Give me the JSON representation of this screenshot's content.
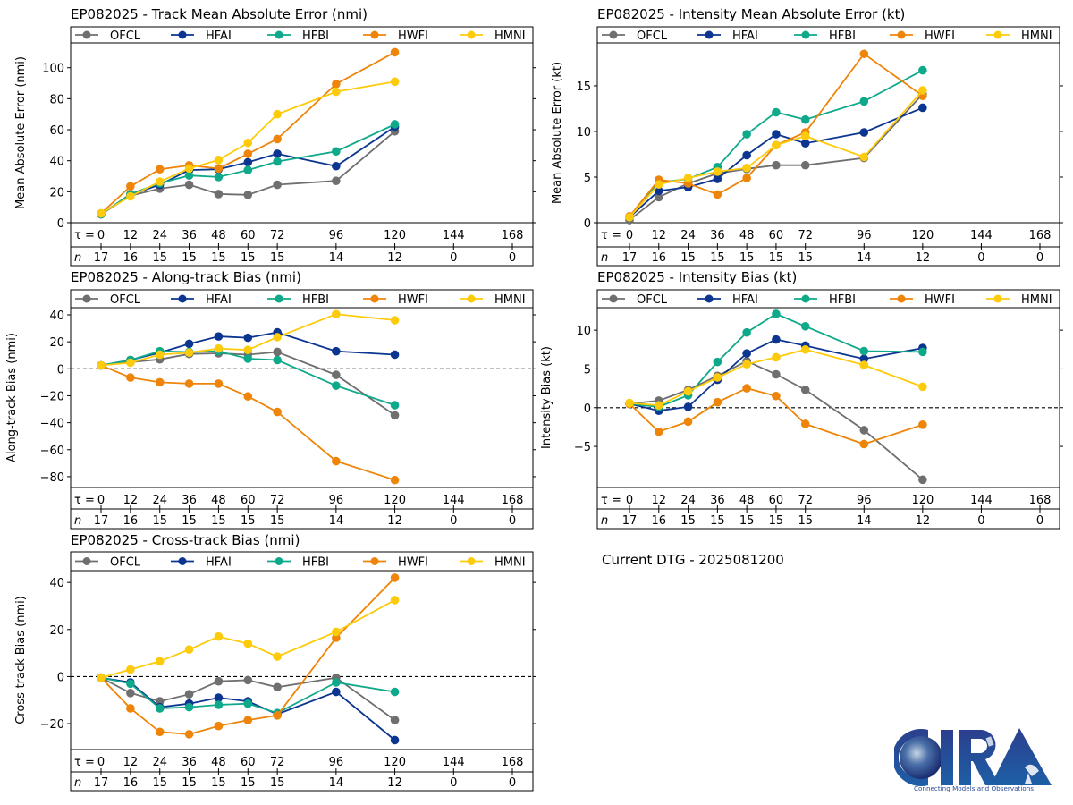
{
  "colors": {
    "OFCL": "#6f6f6f",
    "HFAI": "#0b3591",
    "HFBI": "#0ea98a",
    "HWFI": "#ee8408",
    "HMNI": "#fdcb0b"
  },
  "tau_label": "τ = ",
  "n_label": "n",
  "current_dtg": "Current DTG - 2025081200",
  "logo": {
    "text": "CIRA",
    "tagline": "Connecting Models and Observations"
  },
  "chart_data": [
    {
      "id": "track-mae",
      "type": "line",
      "title": "EP082025 - Track Mean Absolute Error (nmi)",
      "ylabel": "Mean Absolute Error (nmi)",
      "xlabel": "τ (h)",
      "ylim": [
        0,
        116
      ],
      "yticks": [
        0,
        20,
        40,
        60,
        80,
        100
      ],
      "zero_line": false,
      "legend": "top",
      "tau_ticks": [
        0,
        12,
        24,
        36,
        48,
        60,
        72,
        96,
        120,
        144,
        168
      ],
      "n_counts": [
        17,
        16,
        15,
        15,
        15,
        15,
        15,
        14,
        12,
        0,
        0
      ],
      "x": [
        0,
        12,
        24,
        36,
        48,
        60,
        72,
        96,
        120
      ],
      "series": [
        {
          "name": "OFCL",
          "values": [
            5.5,
            17.5,
            22,
            24.5,
            18.5,
            18,
            24.5,
            27,
            59
          ]
        },
        {
          "name": "HFAI",
          "values": [
            5.5,
            18,
            24.5,
            34,
            34.5,
            39,
            44.5,
            36.5,
            62
          ]
        },
        {
          "name": "HFBI",
          "values": [
            5.5,
            18.5,
            25.5,
            30.5,
            29.5,
            34,
            39.5,
            46,
            63.5
          ]
        },
        {
          "name": "HWFI",
          "values": [
            6,
            23.5,
            34.5,
            37,
            35,
            44.5,
            54,
            89.5,
            110
          ]
        },
        {
          "name": "HMNI",
          "values": [
            6,
            17,
            26.5,
            35,
            40.5,
            51.5,
            70,
            84.5,
            91
          ]
        }
      ]
    },
    {
      "id": "intensity-mae",
      "type": "line",
      "title": "EP082025 - Intensity Mean Absolute Error (kt)",
      "ylabel": "Mean Absolute Error (kt)",
      "xlabel": "τ (h)",
      "ylim": [
        0,
        19.7
      ],
      "yticks": [
        0,
        5,
        10,
        15
      ],
      "zero_line": false,
      "legend": "top",
      "tau_ticks": [
        0,
        12,
        24,
        36,
        48,
        60,
        72,
        96,
        120,
        144,
        168
      ],
      "n_counts": [
        17,
        16,
        15,
        15,
        15,
        15,
        15,
        14,
        12,
        0,
        0
      ],
      "x": [
        0,
        12,
        24,
        36,
        48,
        60,
        72,
        96,
        120
      ],
      "series": [
        {
          "name": "OFCL",
          "values": [
            0.3,
            2.8,
            4.3,
            5.4,
            5.9,
            6.3,
            6.3,
            7.1,
            14.1
          ]
        },
        {
          "name": "HFAI",
          "values": [
            0.6,
            3.5,
            3.9,
            4.8,
            7.4,
            9.7,
            8.7,
            9.9,
            12.6
          ]
        },
        {
          "name": "HFBI",
          "values": [
            0.6,
            4.4,
            4.8,
            6.1,
            9.7,
            12.1,
            11.3,
            13.3,
            16.7
          ]
        },
        {
          "name": "HWFI",
          "values": [
            0.7,
            4.7,
            4.3,
            3.1,
            4.9,
            8.5,
            9.9,
            18.5,
            13.9
          ]
        },
        {
          "name": "HMNI",
          "values": [
            0.6,
            4.2,
            4.9,
            5.6,
            6.0,
            8.5,
            9.5,
            7.2,
            14.5
          ]
        }
      ]
    },
    {
      "id": "along-track-bias",
      "type": "line",
      "title": "EP082025 - Along-track Bias (nmi)",
      "ylabel": "Along-track Bias (nmi)",
      "xlabel": "τ (h)",
      "ylim": [
        -88,
        45.3
      ],
      "yticks": [
        -80,
        -60,
        -40,
        -20,
        0,
        20,
        40
      ],
      "zero_line": true,
      "legend": "top",
      "tau_ticks": [
        0,
        12,
        24,
        36,
        48,
        60,
        72,
        96,
        120,
        144,
        168
      ],
      "n_counts": [
        17,
        16,
        15,
        15,
        15,
        15,
        15,
        14,
        12,
        0,
        0
      ],
      "x": [
        0,
        12,
        24,
        36,
        48,
        60,
        72,
        96,
        120
      ],
      "series": [
        {
          "name": "OFCL",
          "values": [
            2.5,
            5,
            7,
            11,
            11.5,
            10.5,
            12.5,
            -4.5,
            -34.5
          ]
        },
        {
          "name": "HFAI",
          "values": [
            2.5,
            6.5,
            12,
            18.5,
            24,
            23,
            27,
            13,
            10.5
          ]
        },
        {
          "name": "HFBI",
          "values": [
            2.5,
            6.5,
            13,
            12.5,
            13,
            7.5,
            6.5,
            -12.5,
            -27
          ]
        },
        {
          "name": "HWFI",
          "values": [
            2.5,
            -6.5,
            -10,
            -11,
            -11,
            -20.5,
            -32,
            -68.5,
            -82.5
          ]
        },
        {
          "name": "HMNI",
          "values": [
            2.5,
            4.5,
            10.5,
            12,
            15,
            14,
            23.5,
            40.5,
            36
          ]
        }
      ]
    },
    {
      "id": "intensity-bias",
      "type": "line",
      "title": "EP082025 - Intensity Bias (kt)",
      "ylabel": "Intensity Bias (kt)",
      "xlabel": "τ (h)",
      "ylim": [
        -10.3,
        12.9
      ],
      "yticks": [
        -5,
        0,
        5,
        10
      ],
      "zero_line": true,
      "legend": "top",
      "tau_ticks": [
        0,
        12,
        24,
        36,
        48,
        60,
        72,
        96,
        120,
        144,
        168
      ],
      "n_counts": [
        17,
        16,
        15,
        15,
        15,
        15,
        15,
        14,
        12,
        0,
        0
      ],
      "x": [
        0,
        12,
        24,
        36,
        48,
        60,
        72,
        96,
        120
      ],
      "series": [
        {
          "name": "OFCL",
          "values": [
            0.5,
            0.9,
            2.3,
            4.1,
            6.0,
            4.3,
            2.3,
            -2.9,
            -9.3
          ]
        },
        {
          "name": "HFAI",
          "values": [
            0.5,
            -0.4,
            0.1,
            3.6,
            7.0,
            8.8,
            8.0,
            6.3,
            7.7
          ]
        },
        {
          "name": "HFBI",
          "values": [
            0.5,
            0.1,
            1.6,
            5.9,
            9.7,
            12.1,
            10.5,
            7.3,
            7.2
          ]
        },
        {
          "name": "HWFI",
          "values": [
            0.5,
            -3.1,
            -1.8,
            0.7,
            2.5,
            1.5,
            -2.1,
            -4.7,
            -2.2
          ]
        },
        {
          "name": "HMNI",
          "values": [
            0.6,
            0.3,
            2.1,
            3.9,
            5.6,
            6.5,
            7.5,
            5.5,
            2.7
          ]
        }
      ]
    },
    {
      "id": "cross-track-bias",
      "type": "line",
      "title": "EP082025 - Cross-track Bias (nmi)",
      "ylabel": "Cross-track Bias (nmi)",
      "xlabel": "τ (h)",
      "ylim": [
        -31,
        45
      ],
      "yticks": [
        -20,
        0,
        20,
        40
      ],
      "zero_line": true,
      "legend": "top",
      "tau_ticks": [
        0,
        12,
        24,
        36,
        48,
        60,
        72,
        96,
        120,
        144,
        168
      ],
      "n_counts": [
        17,
        16,
        15,
        15,
        15,
        15,
        15,
        14,
        12,
        0,
        0
      ],
      "x": [
        0,
        12,
        24,
        36,
        48,
        60,
        72,
        96,
        120
      ],
      "series": [
        {
          "name": "OFCL",
          "values": [
            -0.5,
            -7,
            -10.5,
            -7.5,
            -2,
            -1.5,
            -4.5,
            -0.5,
            -18.5
          ]
        },
        {
          "name": "HFAI",
          "values": [
            -0.5,
            -2.5,
            -13,
            -11.5,
            -9,
            -10.5,
            -16,
            -6.5,
            -27
          ]
        },
        {
          "name": "HFBI",
          "values": [
            -0.5,
            -3,
            -13.5,
            -13,
            -12,
            -11.5,
            -15.5,
            -2.5,
            -6.5
          ]
        },
        {
          "name": "HWFI",
          "values": [
            -0.5,
            -13.5,
            -23.5,
            -24.5,
            -21,
            -18.5,
            -16.5,
            16.5,
            42
          ]
        },
        {
          "name": "HMNI",
          "values": [
            -0.5,
            3,
            6.5,
            11.5,
            17,
            14,
            8.5,
            19,
            32.5
          ]
        }
      ]
    }
  ]
}
